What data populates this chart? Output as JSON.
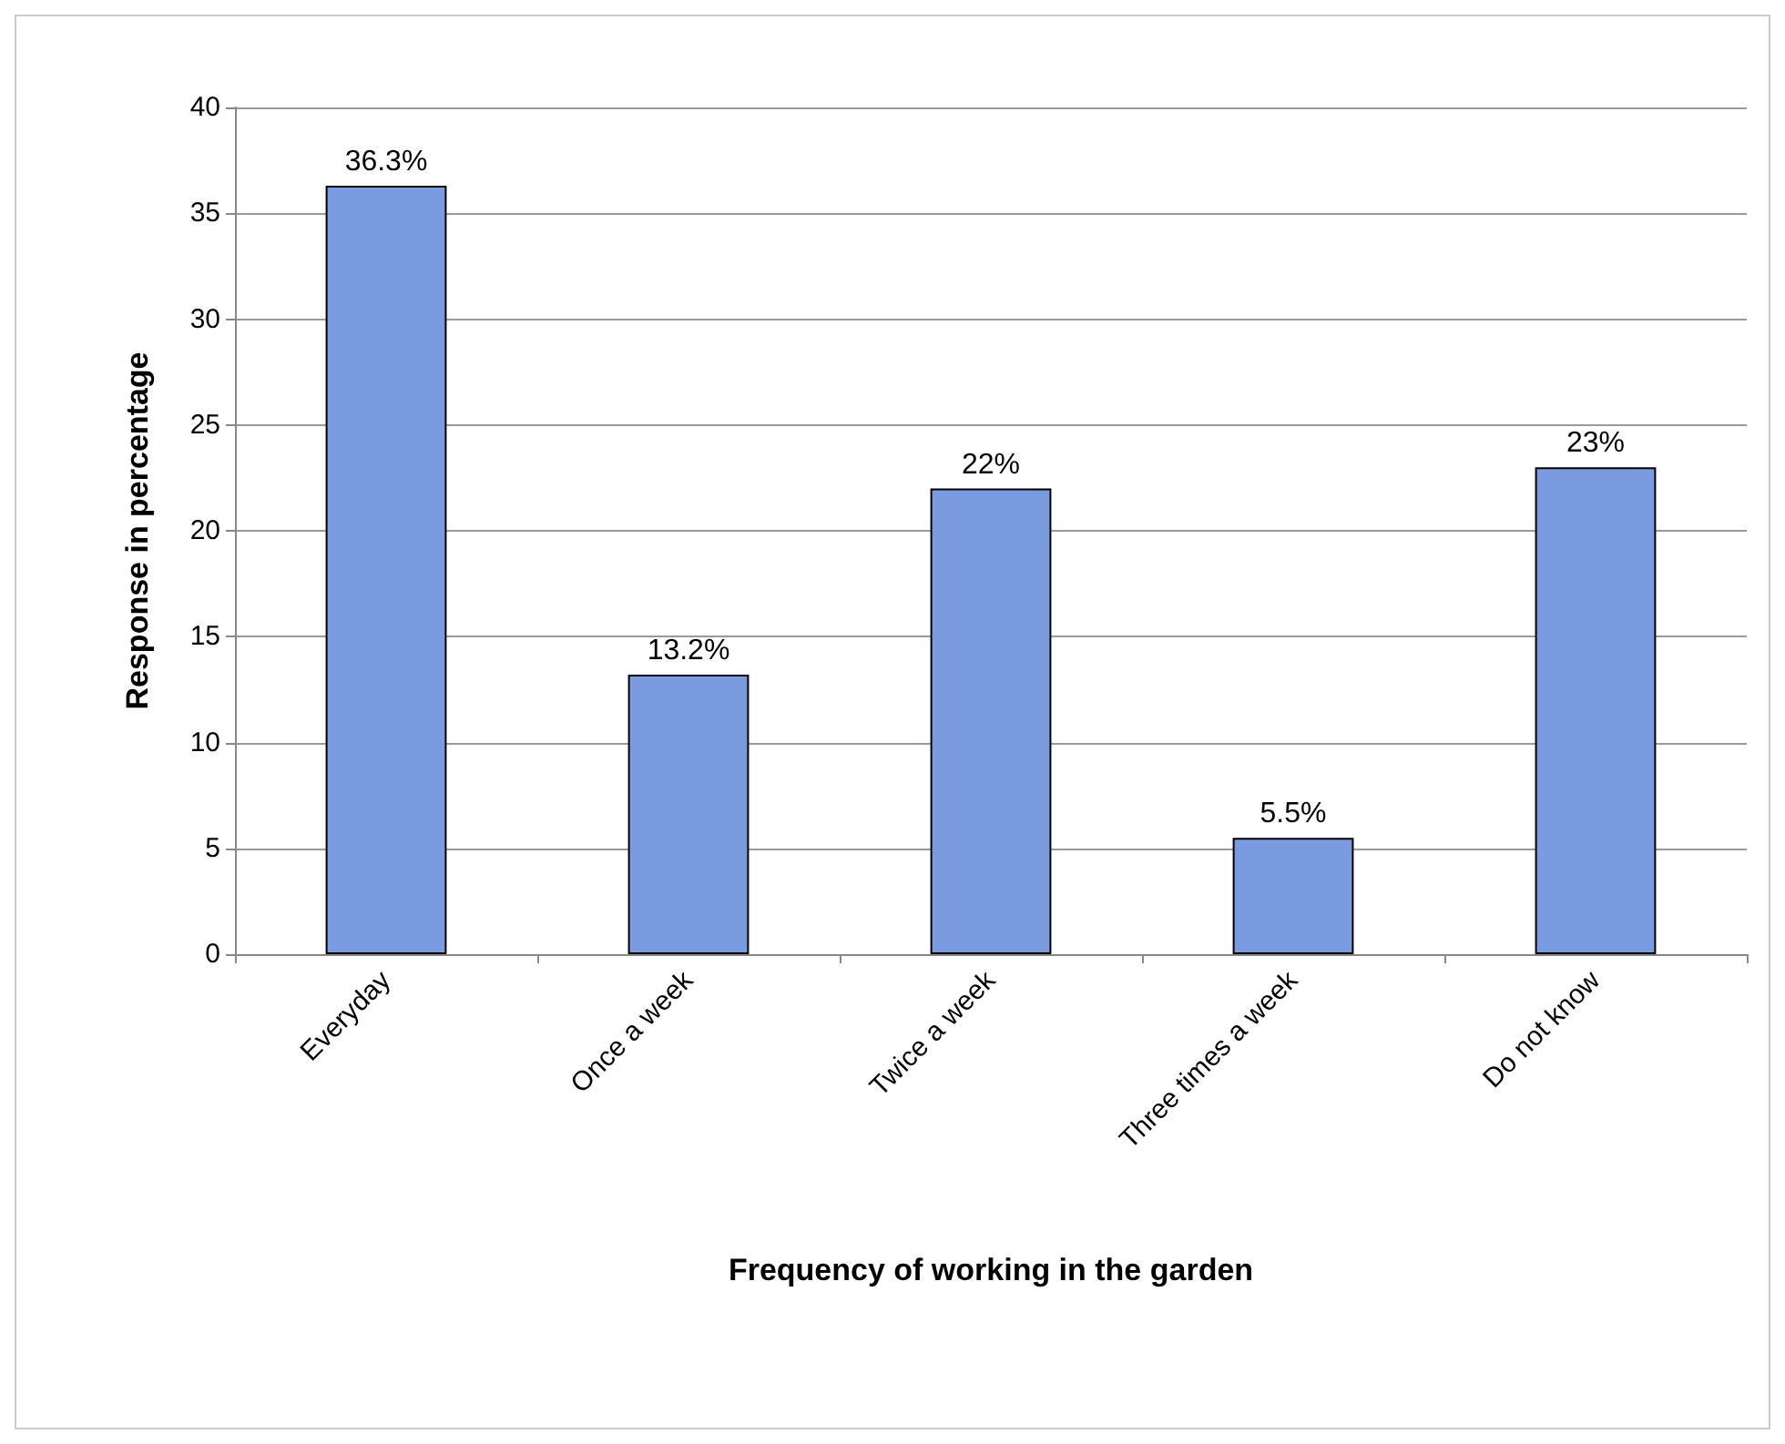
{
  "chart_data": {
    "type": "bar",
    "xlabel": "Frequency of working in the garden",
    "ylabel": "Response in percentage",
    "categories": [
      "Everyday",
      "Once a week",
      "Twice a week",
      "Three times a week",
      "Do not know"
    ],
    "values": [
      36.3,
      13.2,
      22,
      5.5,
      23
    ],
    "value_labels": [
      "36.3%",
      "13.2%",
      "22%",
      "5.5%",
      "23%"
    ],
    "color": "#7b9be0",
    "ylim": [
      0,
      40
    ],
    "yticks": [
      0,
      5,
      10,
      15,
      20,
      25,
      30,
      35,
      40
    ],
    "grid": "y"
  }
}
